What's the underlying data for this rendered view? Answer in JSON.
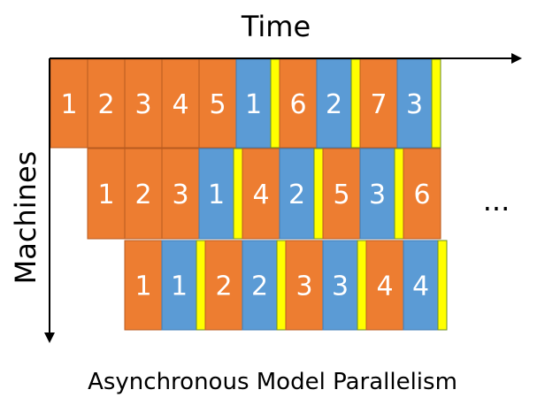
{
  "colors": {
    "forward": "#ED7D31",
    "backward": "#5B9BD5",
    "sync": "#FFFF00",
    "block_border": "#B85A1F",
    "blue_border": "#3F7BB5"
  },
  "labels": {
    "x_axis": "Time",
    "y_axis": "Machines",
    "ellipsis": "...",
    "caption": "Asynchronous Model Parallelism"
  },
  "rows": [
    {
      "cells": [
        {
          "label": "1",
          "kind": "forward"
        },
        {
          "label": "2",
          "kind": "forward"
        },
        {
          "label": "3",
          "kind": "forward"
        },
        {
          "label": "4",
          "kind": "forward"
        },
        {
          "label": "5",
          "kind": "forward"
        },
        {
          "label": "1",
          "kind": "backward"
        },
        {
          "label": "6",
          "kind": "forward"
        },
        {
          "label": "2",
          "kind": "backward"
        },
        {
          "label": "7",
          "kind": "forward"
        },
        {
          "label": "3",
          "kind": "backward"
        }
      ]
    },
    {
      "cells": [
        {
          "label": "1",
          "kind": "forward"
        },
        {
          "label": "2",
          "kind": "forward"
        },
        {
          "label": "3",
          "kind": "forward"
        },
        {
          "label": "1",
          "kind": "backward"
        },
        {
          "label": "4",
          "kind": "forward"
        },
        {
          "label": "2",
          "kind": "backward"
        },
        {
          "label": "5",
          "kind": "forward"
        },
        {
          "label": "3",
          "kind": "backward"
        },
        {
          "label": "6",
          "kind": "forward"
        }
      ]
    },
    {
      "cells": [
        {
          "label": "1",
          "kind": "forward"
        },
        {
          "label": "1",
          "kind": "backward"
        },
        {
          "label": "2",
          "kind": "forward"
        },
        {
          "label": "2",
          "kind": "backward"
        },
        {
          "label": "3",
          "kind": "forward"
        },
        {
          "label": "3",
          "kind": "backward"
        },
        {
          "label": "4",
          "kind": "forward"
        },
        {
          "label": "4",
          "kind": "backward"
        }
      ]
    }
  ]
}
